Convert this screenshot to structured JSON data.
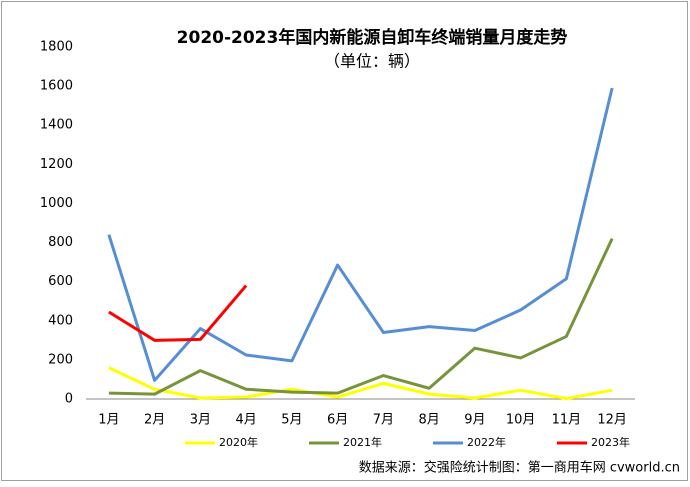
{
  "chart_data": {
    "type": "line",
    "title": "2020-2023年国内新能源自卸车终端销量月度走势",
    "subtitle": "（单位：辆）",
    "source": "数据来源：交强险统计制图：第一商用车网 cvworld.cn",
    "categories": [
      "1月",
      "2月",
      "3月",
      "4月",
      "5月",
      "6月",
      "7月",
      "8月",
      "9月",
      "10月",
      "11月",
      "12月"
    ],
    "series": [
      {
        "name": "2020年",
        "color": "#ffff00",
        "values": [
          160,
          50,
          5,
          10,
          50,
          10,
          80,
          25,
          5,
          45,
          2,
          45
        ]
      },
      {
        "name": "2021年",
        "color": "#77933c",
        "values": [
          30,
          25,
          145,
          50,
          35,
          30,
          120,
          55,
          260,
          210,
          320,
          820
        ]
      },
      {
        "name": "2022年",
        "color": "#558ed5",
        "values": [
          840,
          95,
          360,
          225,
          195,
          685,
          340,
          370,
          350,
          455,
          615,
          1590
        ]
      },
      {
        "name": "2023年",
        "color": "#ff0000",
        "values": [
          445,
          300,
          305,
          580,
          null,
          null,
          null,
          null,
          null,
          null,
          null,
          null
        ]
      }
    ],
    "ylim": [
      0,
      1800
    ],
    "yticks": [
      0,
      200,
      400,
      600,
      800,
      1000,
      1200,
      1400,
      1600,
      1800
    ],
    "legend": "bottom"
  }
}
